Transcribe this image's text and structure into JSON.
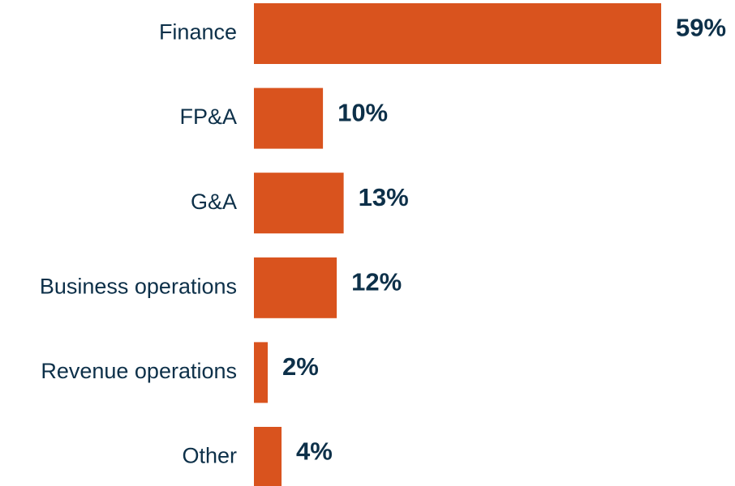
{
  "chart_data": {
    "type": "bar",
    "orientation": "horizontal",
    "categories": [
      "Finance",
      "FP&A",
      "G&A",
      "Business operations",
      "Revenue operations",
      "Other"
    ],
    "values": [
      59,
      10,
      13,
      12,
      2,
      4
    ],
    "value_labels": [
      "59%",
      "10%",
      "13%",
      "12%",
      "2%",
      "4%"
    ],
    "color": "#d9531e"
  }
}
